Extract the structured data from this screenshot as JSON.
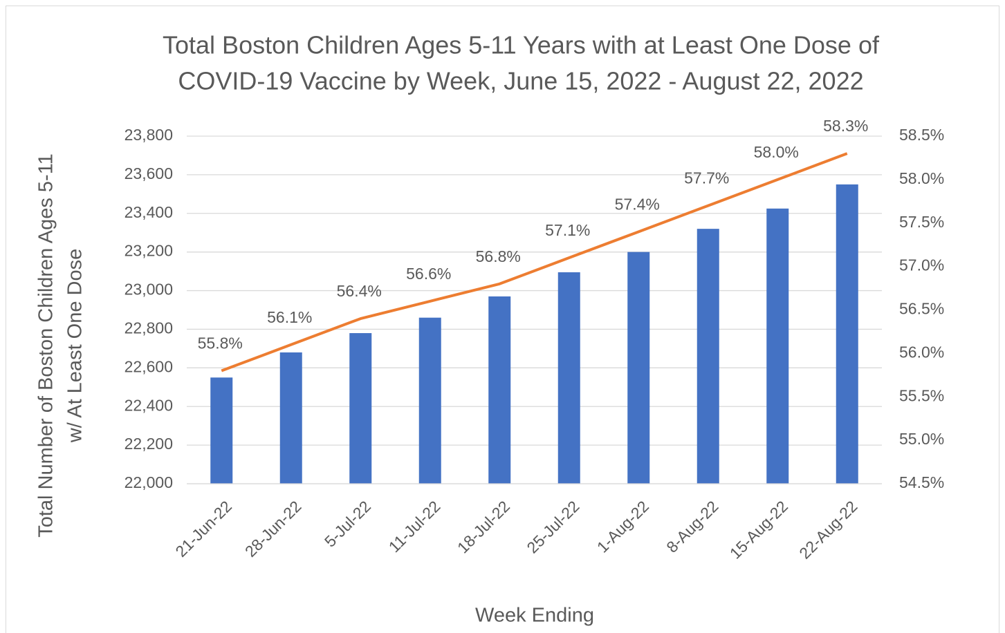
{
  "chart_data": {
    "type": "bar",
    "title": [
      "Total Boston Children Ages 5-11 Years with at Least One Dose of",
      "COVID-19 Vaccine by Week, June 15, 2022 - August 22, 2022"
    ],
    "y_label": [
      "Total Number of Boston Children Ages 5-11",
      "w/ At Least One Dose"
    ],
    "x_label": "Week Ending",
    "categories": [
      "21-Jun-22",
      "28-Jun-22",
      "5-Jul-22",
      "11-Jul-22",
      "18-Jul-22",
      "25-Jul-22",
      "1-Aug-22",
      "8-Aug-22",
      "15-Aug-22",
      "22-Aug-22"
    ],
    "series": [
      {
        "type": "bar",
        "color": "#4472c4",
        "values": [
          22550,
          22680,
          22780,
          22860,
          22970,
          23095,
          23200,
          23320,
          23425,
          23550
        ]
      },
      {
        "type": "line",
        "axis": "y2",
        "color": "#ed7d31",
        "values": [
          55.8,
          56.1,
          56.4,
          56.6,
          56.8,
          57.1,
          57.4,
          57.7,
          58.0,
          58.3
        ],
        "value_labels": [
          "55.8%",
          "56.1%",
          "56.4%",
          "56.6%",
          "56.8%",
          "57.1%",
          "57.4%",
          "57.7%",
          "58.0%",
          "58.3%"
        ]
      }
    ],
    "ylim": [
      22000,
      23800
    ],
    "yticks": [
      {
        "value": 22000,
        "label": "22,000"
      },
      {
        "value": 22200,
        "label": "22,200"
      },
      {
        "value": 22400,
        "label": "22,400"
      },
      {
        "value": 22600,
        "label": "22,600"
      },
      {
        "value": 22800,
        "label": "22,800"
      },
      {
        "value": 23000,
        "label": "23,000"
      },
      {
        "value": 23200,
        "label": "23,200"
      },
      {
        "value": 23400,
        "label": "23,400"
      },
      {
        "value": 23600,
        "label": "23,600"
      },
      {
        "value": 23800,
        "label": "23,800"
      }
    ],
    "y2lim": [
      54.5,
      58.5
    ],
    "y2ticks": [
      {
        "value": 54.5,
        "label": "54.5%"
      },
      {
        "value": 55.0,
        "label": "55.0%"
      },
      {
        "value": 55.5,
        "label": "55.5%"
      },
      {
        "value": 56.0,
        "label": "56.0%"
      },
      {
        "value": 56.5,
        "label": "56.5%"
      },
      {
        "value": 57.0,
        "label": "57.0%"
      },
      {
        "value": 57.5,
        "label": "57.5%"
      },
      {
        "value": 58.0,
        "label": "58.0%"
      },
      {
        "value": 58.5,
        "label": "58.5%"
      }
    ],
    "grid": true
  }
}
